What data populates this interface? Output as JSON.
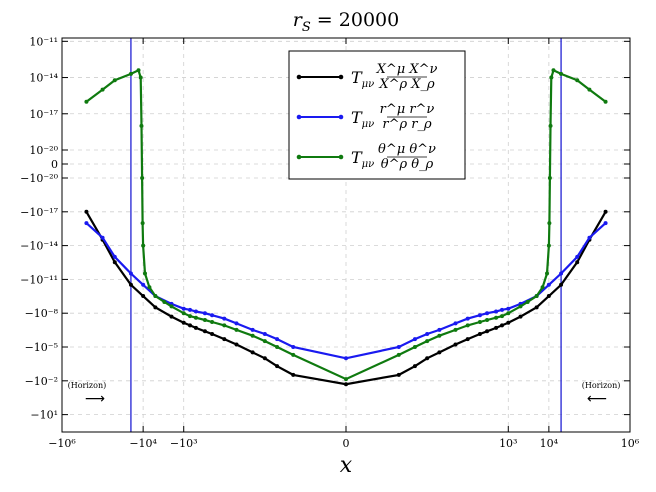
{
  "chart_data": {
    "type": "line",
    "title": "r_S = 20000",
    "title_parts": {
      "main": "r",
      "sub": "S",
      "rest": " = 20000"
    },
    "xlabel": "x",
    "ylabel": "",
    "x_scale": "symlog",
    "y_scale": "symlog",
    "xlim": [
      -1000000,
      1000000
    ],
    "ylim_note": "y axis is symmetric-log, increasing downward in magnitude of negative values",
    "x_ticks": [
      {
        "value": -1000000,
        "label": "−10⁶"
      },
      {
        "value": -10000,
        "label": "−10⁴"
      },
      {
        "value": -1000,
        "label": "−10³"
      },
      {
        "value": 0,
        "label": "0"
      },
      {
        "value": 1000,
        "label": "10³"
      },
      {
        "value": 10000,
        "label": "10⁴"
      },
      {
        "value": 1000000,
        "label": "10⁶"
      }
    ],
    "y_ticks": [
      {
        "value": 1e-11,
        "label": "10⁻¹¹"
      },
      {
        "value": 1e-14,
        "label": "10⁻¹⁴"
      },
      {
        "value": 1e-17,
        "label": "10⁻¹⁷"
      },
      {
        "value": 1e-20,
        "label": "10⁻²⁰"
      },
      {
        "value": 0,
        "label": "0"
      },
      {
        "value": -1e-20,
        "label": "−10⁻²⁰"
      },
      {
        "value": -1e-17,
        "label": "−10⁻¹⁷"
      },
      {
        "value": -1e-14,
        "label": "−10⁻¹⁴"
      },
      {
        "value": -1e-11,
        "label": "−10⁻¹¹"
      },
      {
        "value": -1e-08,
        "label": "−10⁻⁸"
      },
      {
        "value": -1e-05,
        "label": "−10⁻⁵"
      },
      {
        "value": -0.01,
        "label": "−10⁻²"
      },
      {
        "value": -10,
        "label": "−10¹"
      }
    ],
    "grid": true,
    "legend_position": "top-center",
    "horizon": {
      "x": 20000,
      "color": "#1010d0",
      "label": "(Horizon)"
    },
    "series": [
      {
        "name": "T_{μν} X^μX^ν / X^ρX_ρ",
        "legend": {
          "main": "T",
          "sub": "μν",
          "num": "X^μ X^ν",
          "den": "X^ρ X_ρ"
        },
        "color": "#000000",
        "points": [
          [
            -250000,
            -1e-17
          ],
          [
            -100000,
            -3e-15
          ],
          [
            -50000,
            -3e-13
          ],
          [
            -20000,
            -3e-11
          ],
          [
            -10000,
            -3e-10
          ],
          [
            -5000,
            -3e-09
          ],
          [
            -2000,
            -2e-08
          ],
          [
            -1000,
            -7e-08
          ],
          [
            -700,
            -1.2e-07
          ],
          [
            -500,
            -2e-07
          ],
          [
            -300,
            -4e-07
          ],
          [
            -200,
            -7e-07
          ],
          [
            -100,
            -2e-06
          ],
          [
            -50,
            -6e-06
          ],
          [
            -20,
            -3e-05
          ],
          [
            -10,
            -0.0001
          ],
          [
            -5,
            -0.0005
          ],
          [
            -2,
            -0.003
          ],
          [
            0,
            -0.02
          ],
          [
            2,
            -0.003
          ],
          [
            5,
            -0.0005
          ],
          [
            10,
            -0.0001
          ],
          [
            20,
            -3e-05
          ],
          [
            50,
            -6e-06
          ],
          [
            100,
            -2e-06
          ],
          [
            200,
            -7e-07
          ],
          [
            300,
            -4e-07
          ],
          [
            500,
            -2e-07
          ],
          [
            700,
            -1.2e-07
          ],
          [
            1000,
            -7e-08
          ],
          [
            2000,
            -2e-08
          ],
          [
            5000,
            -3e-09
          ],
          [
            10000,
            -3e-10
          ],
          [
            20000,
            -3e-11
          ],
          [
            50000,
            -3e-13
          ],
          [
            100000,
            -3e-15
          ],
          [
            250000,
            -1e-17
          ]
        ]
      },
      {
        "name": "T_{μν} r^μr^ν / r^ρr_ρ",
        "legend": {
          "main": "T",
          "sub": "μν",
          "num": "r^μ r^ν",
          "den": "r^ρ r_ρ"
        },
        "color": "#1a1af0",
        "points": [
          [
            -250000,
            -1e-16
          ],
          [
            -100000,
            -2e-15
          ],
          [
            -50000,
            -1e-13
          ],
          [
            -20000,
            -3e-12
          ],
          [
            -10000,
            -3e-11
          ],
          [
            -5000,
            -3e-10
          ],
          [
            -2000,
            -1.5e-09
          ],
          [
            -1000,
            -4e-09
          ],
          [
            -700,
            -5e-09
          ],
          [
            -500,
            -7e-09
          ],
          [
            -300,
            -1e-08
          ],
          [
            -200,
            -1.5e-08
          ],
          [
            -100,
            -3e-08
          ],
          [
            -50,
            -8e-08
          ],
          [
            -20,
            -3e-07
          ],
          [
            -10,
            -7e-07
          ],
          [
            -5,
            -2e-06
          ],
          [
            -2,
            -1e-05
          ],
          [
            0,
            -0.0001
          ],
          [
            2,
            -1e-05
          ],
          [
            5,
            -2e-06
          ],
          [
            10,
            -7e-07
          ],
          [
            20,
            -3e-07
          ],
          [
            50,
            -8e-08
          ],
          [
            100,
            -3e-08
          ],
          [
            200,
            -1.5e-08
          ],
          [
            300,
            -1e-08
          ],
          [
            500,
            -7e-09
          ],
          [
            700,
            -5e-09
          ],
          [
            1000,
            -4e-09
          ],
          [
            2000,
            -1.5e-09
          ],
          [
            5000,
            -3e-10
          ],
          [
            10000,
            -3e-11
          ],
          [
            20000,
            -3e-12
          ],
          [
            50000,
            -1e-13
          ],
          [
            100000,
            -2e-15
          ],
          [
            250000,
            -1e-16
          ]
        ]
      },
      {
        "name": "T_{μν} θ^μθ^ν / θ^ρθ_ρ",
        "legend": {
          "main": "T",
          "sub": "μν",
          "num": "θ^μ θ^ν",
          "den": "θ^ρ θ_ρ"
        },
        "color": "#0f7a0f",
        "points": [
          [
            -250000,
            1e-16
          ],
          [
            -100000,
            1e-15
          ],
          [
            -50000,
            6e-15
          ],
          [
            -20000,
            2e-14
          ],
          [
            -13000,
            4e-14
          ],
          [
            -11500,
            1e-14
          ],
          [
            -11000,
            1e-18
          ],
          [
            -10600,
            -1e-20
          ],
          [
            -10300,
            -1e-16
          ],
          [
            -10000,
            -1e-14
          ],
          [
            -9000,
            -3e-12
          ],
          [
            -7000,
            -5e-11
          ],
          [
            -5000,
            -3e-10
          ],
          [
            -3000,
            -1e-09
          ],
          [
            -2000,
            -2.5e-09
          ],
          [
            -1000,
            -1e-08
          ],
          [
            -700,
            -1.8e-08
          ],
          [
            -500,
            -2.5e-08
          ],
          [
            -300,
            -4e-08
          ],
          [
            -200,
            -6e-08
          ],
          [
            -100,
            -1.2e-07
          ],
          [
            -50,
            -3e-07
          ],
          [
            -20,
            -1e-06
          ],
          [
            -10,
            -3e-06
          ],
          [
            -5,
            -1e-05
          ],
          [
            -2,
            -5e-05
          ],
          [
            0,
            -0.007
          ],
          [
            2,
            -5e-05
          ],
          [
            5,
            -1e-05
          ],
          [
            10,
            -3e-06
          ],
          [
            20,
            -1e-06
          ],
          [
            50,
            -3e-07
          ],
          [
            100,
            -1.2e-07
          ],
          [
            200,
            -6e-08
          ],
          [
            300,
            -4e-08
          ],
          [
            500,
            -2.5e-08
          ],
          [
            700,
            -1.8e-08
          ],
          [
            1000,
            -1e-08
          ],
          [
            2000,
            -2.5e-09
          ],
          [
            3000,
            -1e-09
          ],
          [
            5000,
            -3e-10
          ],
          [
            7000,
            -5e-11
          ],
          [
            9000,
            -3e-12
          ],
          [
            10000,
            -1e-14
          ],
          [
            10300,
            -1e-16
          ],
          [
            10600,
            -1e-20
          ],
          [
            11000,
            1e-18
          ],
          [
            11500,
            1e-14
          ],
          [
            13000,
            4e-14
          ],
          [
            20000,
            2e-14
          ],
          [
            50000,
            6e-15
          ],
          [
            100000,
            1e-15
          ],
          [
            250000,
            1e-16
          ]
        ]
      }
    ]
  }
}
